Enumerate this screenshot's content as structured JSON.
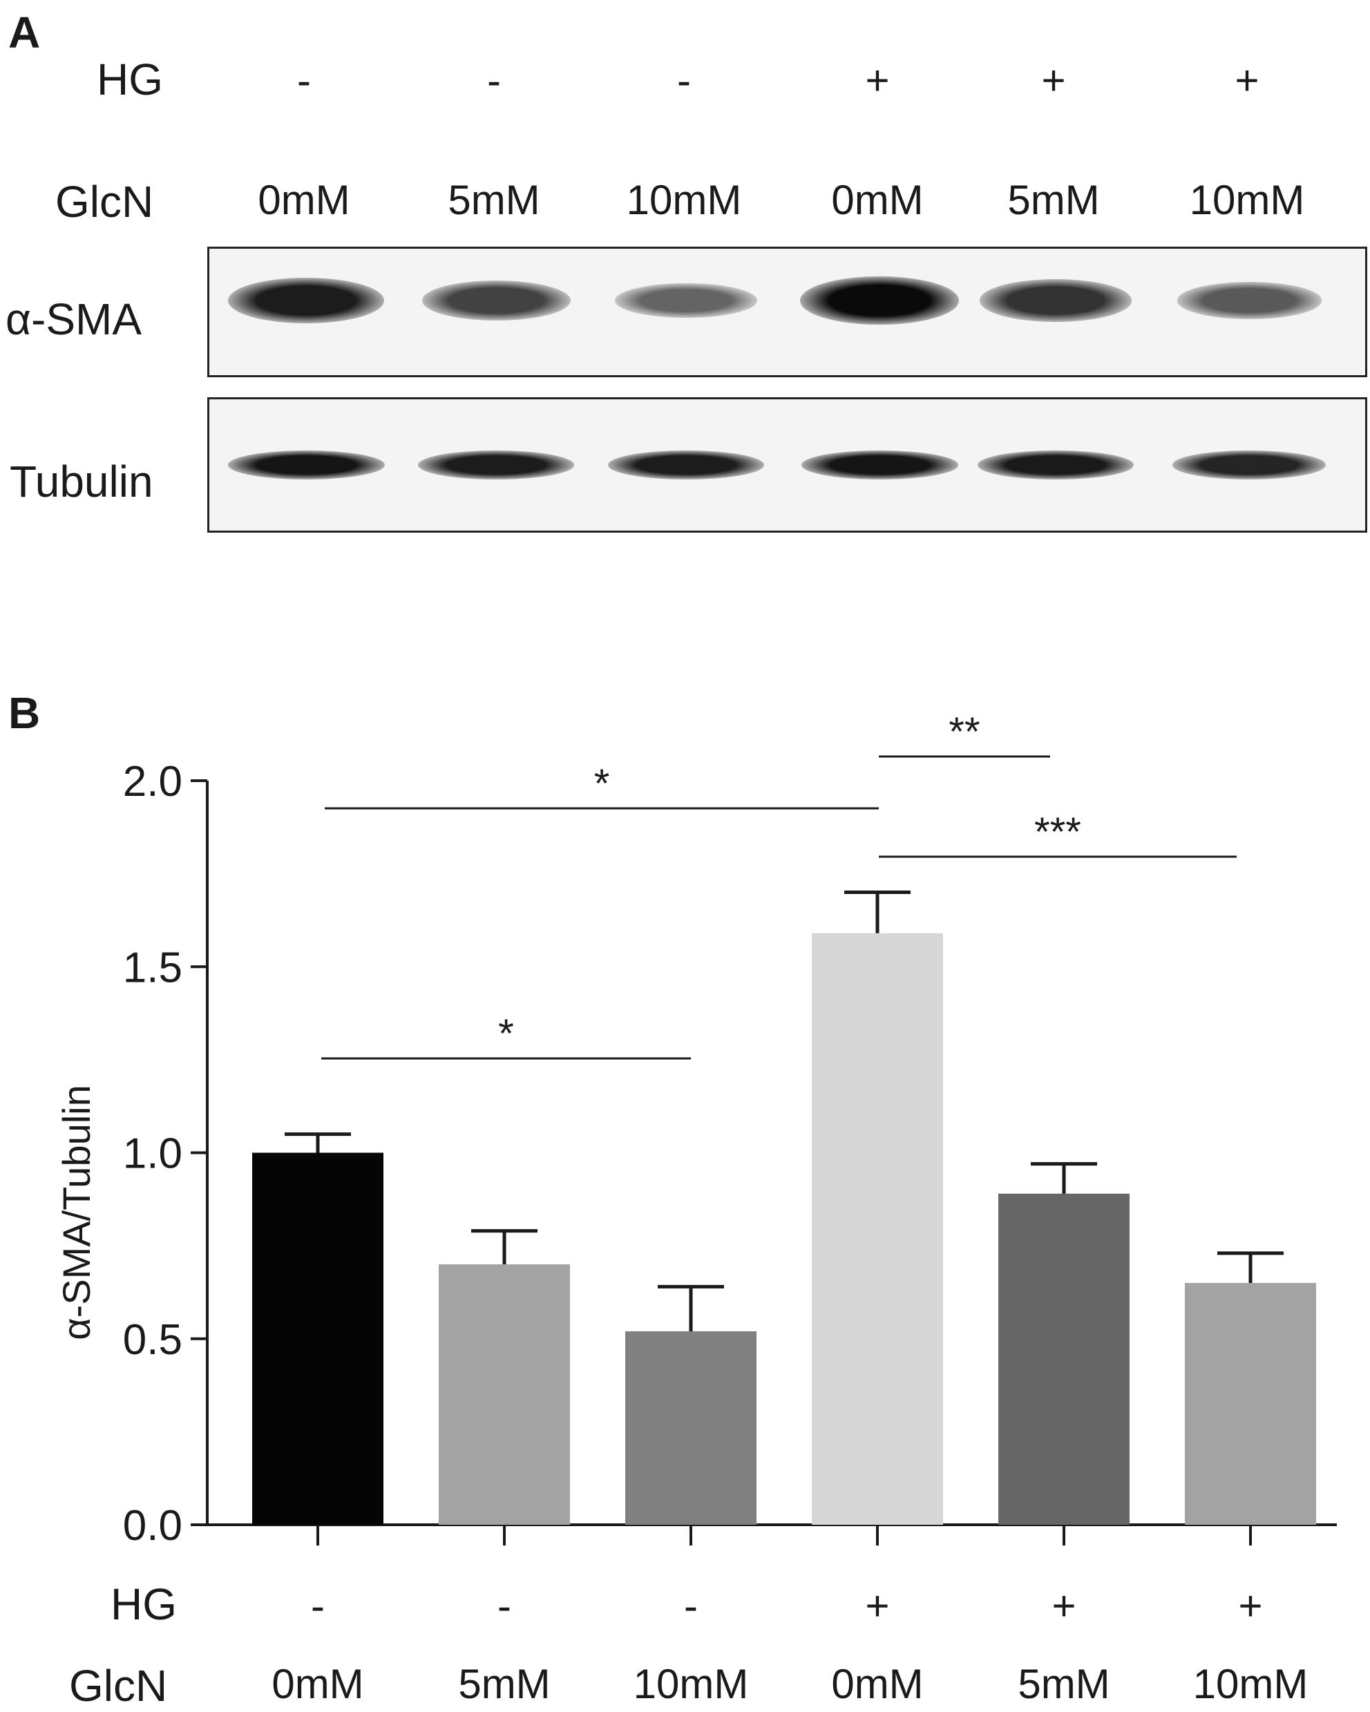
{
  "panel_a": {
    "letter": "A",
    "row_hg_label": "HG",
    "row_glcn_label": "GlcN",
    "hg": [
      "-",
      "-",
      "-",
      "+",
      "+",
      "+"
    ],
    "glcn": [
      "0mM",
      "5mM",
      "10mM",
      "0mM",
      "5mM",
      "10mM"
    ],
    "blots": [
      {
        "name": "α-SMA",
        "intensity": [
          0.92,
          0.75,
          0.6,
          1.0,
          0.82,
          0.65
        ]
      },
      {
        "name": "Tubulin",
        "intensity": [
          0.95,
          0.92,
          0.92,
          0.95,
          0.93,
          0.88
        ]
      }
    ]
  },
  "panel_b": {
    "letter": "B",
    "row_hg_label": "HG",
    "row_glcn_label": "GlcN",
    "hg": [
      "-",
      "-",
      "-",
      "+",
      "+",
      "+"
    ],
    "glcn": [
      "0mM",
      "5mM",
      "10mM",
      "0mM",
      "5mM",
      "10mM"
    ]
  },
  "chart_data": {
    "type": "bar",
    "ylabel": "α-SMA/Tubulin",
    "ylim": [
      0,
      2.0
    ],
    "yticks": [
      "0.0",
      "0.5",
      "1.0",
      "1.5",
      "2.0"
    ],
    "categories": [
      "HG - / GlcN 0mM",
      "HG - / GlcN 5mM",
      "HG - / GlcN 10mM",
      "HG + / GlcN 0mM",
      "HG + / GlcN 5mM",
      "HG + / GlcN 10mM"
    ],
    "values": [
      1.0,
      0.7,
      0.52,
      1.59,
      0.89,
      0.65
    ],
    "errors": [
      0.05,
      0.09,
      0.12,
      0.11,
      0.08,
      0.08
    ],
    "bar_colors": [
      "#050505",
      "#a3a3a3",
      "#808080",
      "#d6d6d6",
      "#666666",
      "#a3a3a3"
    ],
    "significance": [
      {
        "from": 0,
        "to": 3,
        "label": "*"
      },
      {
        "from": 0,
        "to": 2,
        "label": "*"
      },
      {
        "from": 3,
        "to": 4,
        "label": "**"
      },
      {
        "from": 3,
        "to": 5,
        "label": "***"
      }
    ],
    "grid": false
  }
}
